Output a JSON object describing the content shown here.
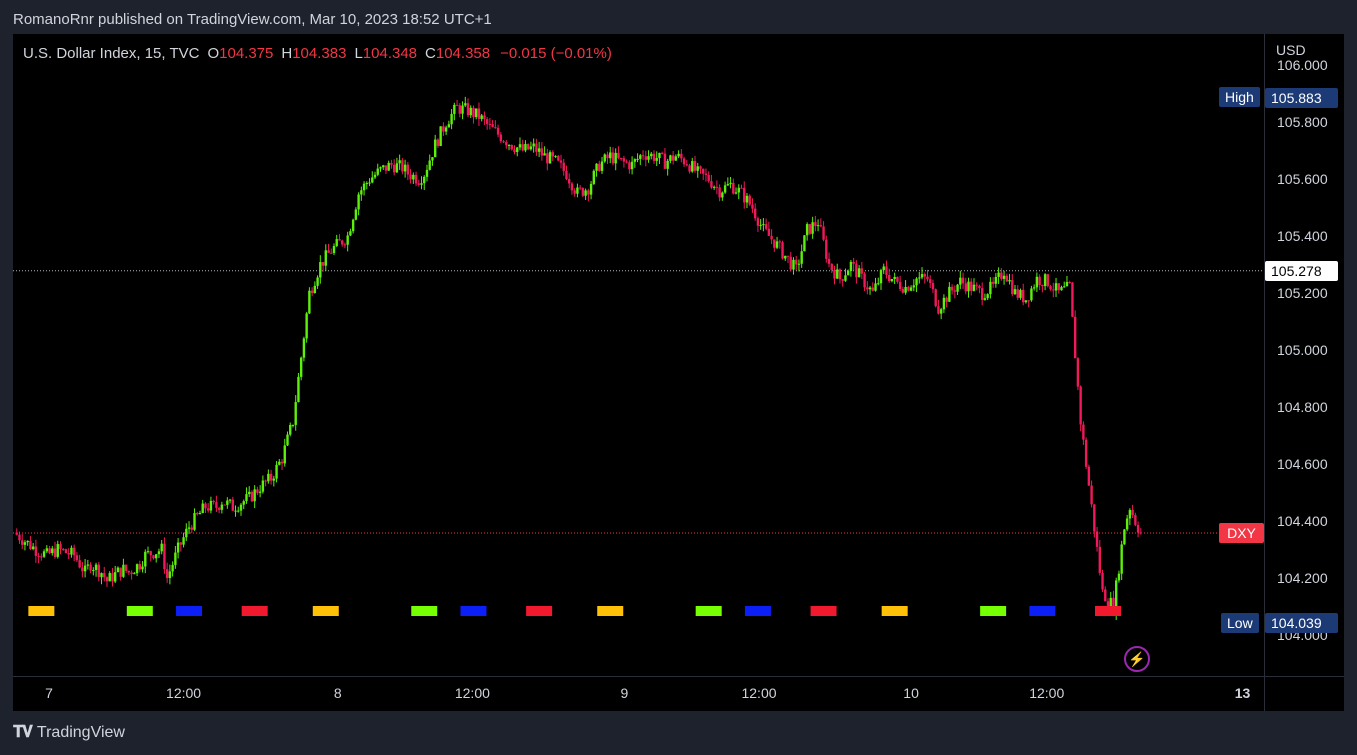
{
  "header": {
    "text": "RomanoRnr published on TradingView.com, Mar 10, 2023 18:52 UTC+1"
  },
  "legend": {
    "symbol": "U.S. Dollar Index, 15, TVC",
    "o_label": "O",
    "o_value": "104.375",
    "h_label": "H",
    "h_value": "104.383",
    "l_label": "L",
    "l_value": "104.348",
    "c_label": "C",
    "c_value": "104.358",
    "change": "−0.015 (−0.01%)"
  },
  "axis": {
    "currency": "USD",
    "y_ticks": [
      "106.000",
      "105.800",
      "105.600",
      "105.400",
      "105.200",
      "105.000",
      "104.800",
      "104.600",
      "104.400",
      "104.200",
      "104.000"
    ],
    "x_ticks": [
      {
        "label": "7",
        "bold": false
      },
      {
        "label": "12:00",
        "bold": false
      },
      {
        "label": "8",
        "bold": false
      },
      {
        "label": "12:00",
        "bold": false
      },
      {
        "label": "9",
        "bold": false
      },
      {
        "label": "12:00",
        "bold": false
      },
      {
        "label": "10",
        "bold": false
      },
      {
        "label": "12:00",
        "bold": false
      },
      {
        "label": "13",
        "bold": true
      }
    ]
  },
  "tags": {
    "high_name": "High",
    "high_value": "105.883",
    "low_name": "Low",
    "low_value": "104.039",
    "current_value": "105.278",
    "symbol": "DXY"
  },
  "footer": {
    "brand": "TradingView"
  },
  "chart_data": {
    "type": "candlestick",
    "symbol": "U.S. Dollar Index",
    "interval": "15",
    "source": "TVC",
    "ylim": [
      103.98,
      106.02
    ],
    "x_days": [
      "7",
      "8",
      "9",
      "10"
    ],
    "high": 105.883,
    "low": 104.039,
    "current_line": 105.278,
    "last_price": 104.358,
    "up_color": "#5cf00a",
    "down_color": "#f0195a",
    "close_path": [
      [
        0.0,
        104.36
      ],
      [
        1.0,
        104.33
      ],
      [
        2.0,
        104.3
      ],
      [
        3.0,
        104.28
      ],
      [
        4.0,
        104.3
      ],
      [
        5.5,
        104.28
      ],
      [
        6.5,
        104.22
      ],
      [
        7.0,
        104.25
      ],
      [
        8.0,
        104.22
      ],
      [
        8.5,
        104.19
      ],
      [
        9.5,
        104.22
      ],
      [
        10.0,
        104.23
      ],
      [
        10.5,
        104.22
      ],
      [
        11.5,
        104.25
      ],
      [
        12.0,
        104.28
      ],
      [
        13.5,
        104.3
      ],
      [
        14.0,
        104.2
      ],
      [
        15.0,
        104.3
      ],
      [
        16.0,
        104.38
      ],
      [
        17.5,
        104.45
      ],
      [
        18.5,
        104.45
      ],
      [
        19.0,
        104.47
      ],
      [
        20.0,
        104.45
      ],
      [
        21.5,
        104.48
      ],
      [
        22.5,
        104.52
      ],
      [
        23.5,
        104.55
      ],
      [
        24.5,
        104.62
      ],
      [
        25.5,
        104.75
      ],
      [
        26.5,
        105.05
      ],
      [
        27.0,
        105.2
      ],
      [
        28.0,
        105.3
      ],
      [
        29.0,
        105.35
      ],
      [
        30.5,
        105.4
      ],
      [
        31.5,
        105.55
      ],
      [
        32.5,
        105.6
      ],
      [
        33.5,
        105.63
      ],
      [
        34.5,
        105.65
      ],
      [
        35.5,
        105.64
      ],
      [
        36.0,
        105.62
      ],
      [
        37.0,
        105.6
      ],
      [
        37.5,
        105.62
      ],
      [
        38.0,
        105.67
      ],
      [
        38.5,
        105.72
      ],
      [
        39.5,
        105.8
      ],
      [
        40.5,
        105.85
      ],
      [
        41.5,
        105.84
      ],
      [
        42.5,
        105.82
      ],
      [
        43.5,
        105.78
      ],
      [
        44.5,
        105.75
      ],
      [
        45.5,
        105.72
      ],
      [
        46.5,
        105.7
      ],
      [
        47.5,
        105.71
      ],
      [
        48.5,
        105.68
      ],
      [
        49.5,
        105.66
      ],
      [
        50.5,
        105.62
      ],
      [
        51.5,
        105.55
      ],
      [
        52.5,
        105.57
      ],
      [
        53.5,
        105.65
      ],
      [
        54.5,
        105.68
      ],
      [
        55.5,
        105.66
      ],
      [
        56.5,
        105.65
      ],
      [
        57.5,
        105.69
      ],
      [
        58.5,
        105.68
      ],
      [
        59.5,
        105.66
      ],
      [
        60.5,
        105.68
      ],
      [
        61.5,
        105.66
      ],
      [
        62.5,
        105.62
      ],
      [
        63.5,
        105.6
      ],
      [
        64.5,
        105.56
      ],
      [
        65.5,
        105.58
      ],
      [
        66.5,
        105.55
      ],
      [
        67.5,
        105.5
      ],
      [
        68.5,
        105.42
      ],
      [
        69.5,
        105.38
      ],
      [
        70.5,
        105.33
      ],
      [
        71.5,
        105.28
      ],
      [
        72.5,
        105.42
      ],
      [
        73.5,
        105.45
      ],
      [
        74.5,
        105.3
      ],
      [
        75.5,
        105.25
      ],
      [
        76.5,
        105.3
      ],
      [
        77.5,
        105.25
      ],
      [
        78.5,
        105.2
      ],
      [
        79.5,
        105.28
      ],
      [
        80.5,
        105.24
      ],
      [
        81.5,
        105.22
      ],
      [
        82.5,
        105.25
      ],
      [
        83.5,
        105.25
      ],
      [
        84.5,
        105.15
      ],
      [
        85.5,
        105.2
      ],
      [
        86.5,
        105.24
      ],
      [
        87.5,
        105.22
      ],
      [
        88.5,
        105.2
      ],
      [
        89.5,
        105.22
      ],
      [
        90.5,
        105.28
      ],
      [
        91.5,
        105.2
      ],
      [
        92.5,
        105.18
      ],
      [
        93.5,
        105.25
      ],
      [
        94.5,
        105.24
      ],
      [
        95.5,
        105.2
      ],
      [
        96.5,
        105.22
      ],
      [
        97.5,
        104.75
      ],
      [
        98.5,
        104.45
      ],
      [
        99.5,
        104.15
      ],
      [
        100.5,
        104.1
      ],
      [
        101.5,
        104.38
      ],
      [
        102.0,
        104.45
      ],
      [
        102.5,
        104.4
      ],
      [
        103.0,
        104.358
      ]
    ],
    "session_markers": [
      {
        "x": 2.5,
        "color": "#ffc107"
      },
      {
        "x": 11.5,
        "color": "#76ff03"
      },
      {
        "x": 16.0,
        "color": "#0d1ff7"
      },
      {
        "x": 22.0,
        "color": "#f0192d"
      },
      {
        "x": 28.5,
        "color": "#ffc107"
      },
      {
        "x": 37.5,
        "color": "#76ff03"
      },
      {
        "x": 42.0,
        "color": "#0d1ff7"
      },
      {
        "x": 48.0,
        "color": "#f0192d"
      },
      {
        "x": 54.5,
        "color": "#ffc107"
      },
      {
        "x": 63.5,
        "color": "#76ff03"
      },
      {
        "x": 68.0,
        "color": "#0d1ff7"
      },
      {
        "x": 74.0,
        "color": "#f0192d"
      },
      {
        "x": 80.5,
        "color": "#ffc107"
      },
      {
        "x": 89.5,
        "color": "#76ff03"
      },
      {
        "x": 94.0,
        "color": "#0d1ff7"
      },
      {
        "x": 100.0,
        "color": "#f0192d"
      }
    ]
  }
}
